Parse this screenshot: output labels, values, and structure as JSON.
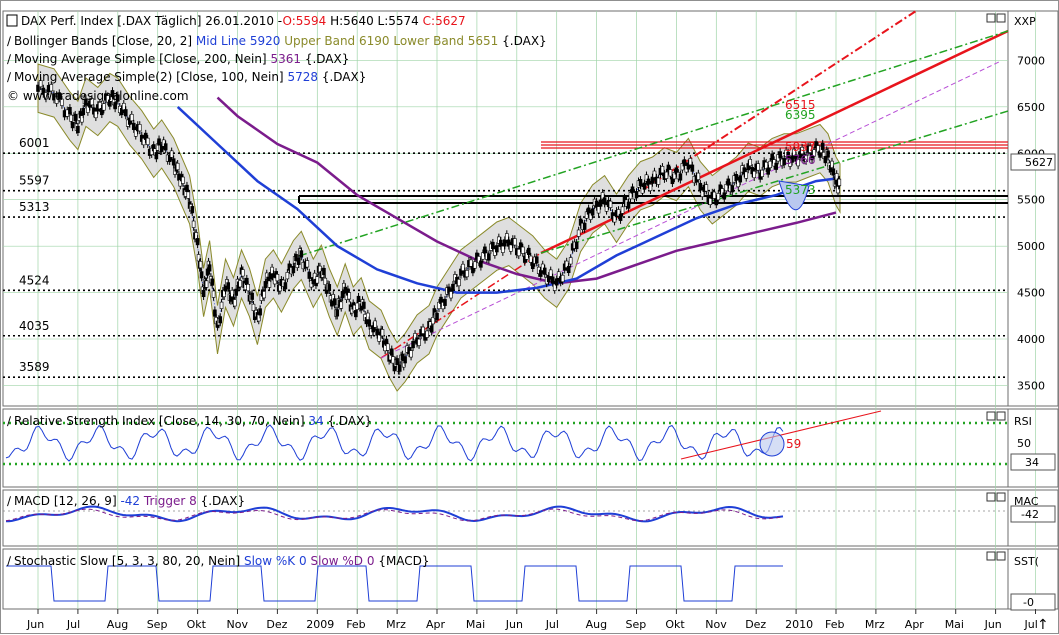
{
  "colors": {
    "grid": "#9fd4a8",
    "red": "#e8141c",
    "blue": "#1f3fd6",
    "purple": "#7b1c8c",
    "olive": "#8a8a2a",
    "green": "#22a322",
    "band_fill": "#d9d9d9"
  },
  "price_panel": {
    "title": "DAX Perf. Index [.DAX  Täglich] 26.01.2010 -",
    "o": "O:5594",
    "h": "H:5640",
    "l": "L:5574",
    "c": "C:5627",
    "bollinger": {
      "label": "Bollinger Bands [Close, 20, 2]",
      "mid": "Mid Line 5920",
      "upper": "Upper Band 6190",
      "lower": "Lower Band 5651",
      "sym": "{.DAX}"
    },
    "sma200": {
      "label": "Moving Average Simple [Close, 200, Nein]",
      "value": "5361",
      "sym": "{.DAX}"
    },
    "sma100": {
      "label": "Moving Average Simple(2) [Close, 100, Nein]",
      "value": "5728",
      "sym": "{.DAX}"
    },
    "watermark": "© www.tradesignalonline.com",
    "axis_label": "XXP",
    "last_value": "5627"
  },
  "rsi_panel": {
    "title": "Relative Strength Index [Close, 14, 30, 70, Nein]",
    "value": "34",
    "sym": "{.DAX}",
    "axis_label": "RSI",
    "tick": "50",
    "annotation": "59",
    "last_value": "34"
  },
  "macd_panel": {
    "title": "MACD [12, 26, 9]",
    "value": "-42",
    "trigger": "Trigger 8",
    "sym": "{.DAX}",
    "axis_label": "MAC",
    "last_value": "-42"
  },
  "stoch_panel": {
    "title": "Stochastic Slow [5, 3, 3, 80, 20, Nein]",
    "k": "Slow %K 0",
    "d": "Slow %D 0",
    "sym": "{MACD}",
    "axis_label": "SST(",
    "last_value": "-0"
  },
  "chart_data": {
    "type": "line",
    "title": "DAX Perf. Index [.DAX  Täglich] 26.01.2010",
    "x_labels": [
      "Jun",
      "Jul",
      "Aug",
      "Sep",
      "Okt",
      "Nov",
      "Dez",
      "2009",
      "Feb",
      "Mrz",
      "Apr",
      "Mai",
      "Jun",
      "Jul",
      "Aug",
      "Sep",
      "Okt",
      "Nov",
      "Dez",
      "2010",
      "Feb",
      "Mrz",
      "Apr",
      "Mai",
      "Jun",
      "Jul"
    ],
    "ylim": [
      3300,
      7500
    ],
    "y_ticks": [
      3500,
      4000,
      4500,
      5000,
      5500,
      6000,
      6500,
      7000
    ],
    "level_lines": [
      6001,
      5597,
      5313,
      4524,
      4035,
      3589
    ],
    "price_annotations": [
      "6515",
      "6395",
      "5937",
      "5766",
      "5373"
    ],
    "grid": true,
    "series": [
      {
        "name": "Close",
        "points": [
          [
            0,
            6700
          ],
          [
            0.4,
            6650
          ],
          [
            0.8,
            6400
          ],
          [
            1,
            6300
          ],
          [
            1.2,
            6550
          ],
          [
            1.5,
            6450
          ],
          [
            1.8,
            6600
          ],
          [
            2,
            6550
          ],
          [
            2.3,
            6350
          ],
          [
            2.6,
            6200
          ],
          [
            2.9,
            6000
          ],
          [
            3.1,
            6100
          ],
          [
            3.4,
            5900
          ],
          [
            3.6,
            5700
          ],
          [
            3.8,
            5500
          ],
          [
            4,
            5000
          ],
          [
            4.15,
            4500
          ],
          [
            4.3,
            4800
          ],
          [
            4.5,
            4100
          ],
          [
            4.7,
            4600
          ],
          [
            4.9,
            4400
          ],
          [
            5.1,
            4700
          ],
          [
            5.3,
            4500
          ],
          [
            5.5,
            4200
          ],
          [
            5.7,
            4600
          ],
          [
            5.9,
            4700
          ],
          [
            6.1,
            4550
          ],
          [
            6.4,
            4800
          ],
          [
            6.6,
            4900
          ],
          [
            6.9,
            4600
          ],
          [
            7.1,
            4750
          ],
          [
            7.3,
            4500
          ],
          [
            7.5,
            4300
          ],
          [
            7.7,
            4550
          ],
          [
            7.9,
            4300
          ],
          [
            8.1,
            4400
          ],
          [
            8.3,
            4150
          ],
          [
            8.6,
            4050
          ],
          [
            8.8,
            3850
          ],
          [
            9,
            3700
          ],
          [
            9.2,
            3800
          ],
          [
            9.5,
            4000
          ],
          [
            9.8,
            4100
          ],
          [
            10,
            4300
          ],
          [
            10.3,
            4500
          ],
          [
            10.6,
            4700
          ],
          [
            10.9,
            4800
          ],
          [
            11.2,
            4900
          ],
          [
            11.5,
            5000
          ],
          [
            11.8,
            5050
          ],
          [
            12.1,
            4950
          ],
          [
            12.4,
            4850
          ],
          [
            12.7,
            4700
          ],
          [
            13,
            4600
          ],
          [
            13.3,
            4800
          ],
          [
            13.6,
            5200
          ],
          [
            13.9,
            5400
          ],
          [
            14.2,
            5500
          ],
          [
            14.5,
            5300
          ],
          [
            14.8,
            5500
          ],
          [
            15.1,
            5650
          ],
          [
            15.4,
            5700
          ],
          [
            15.7,
            5800
          ],
          [
            16,
            5750
          ],
          [
            16.3,
            5900
          ],
          [
            16.6,
            5650
          ],
          [
            16.9,
            5500
          ],
          [
            17.2,
            5600
          ],
          [
            17.5,
            5700
          ],
          [
            17.8,
            5850
          ],
          [
            18.1,
            5800
          ],
          [
            18.4,
            5900
          ],
          [
            18.7,
            5950
          ],
          [
            19,
            5950
          ],
          [
            19.3,
            6000
          ],
          [
            19.6,
            6050
          ],
          [
            19.8,
            5950
          ],
          [
            20,
            5700
          ],
          [
            20.1,
            5627
          ]
        ]
      },
      {
        "name": "SMA 200",
        "points": [
          [
            4.5,
            6600
          ],
          [
            5,
            6400
          ],
          [
            6,
            6100
          ],
          [
            7,
            5900
          ],
          [
            8,
            5550
          ],
          [
            9,
            5300
          ],
          [
            10,
            5050
          ],
          [
            11,
            4850
          ],
          [
            12,
            4700
          ],
          [
            13,
            4600
          ],
          [
            14,
            4650
          ],
          [
            15,
            4800
          ],
          [
            16,
            4950
          ],
          [
            17,
            5050
          ],
          [
            18,
            5150
          ],
          [
            19,
            5250
          ],
          [
            20,
            5361
          ]
        ]
      },
      {
        "name": "SMA 100",
        "points": [
          [
            3.5,
            6500
          ],
          [
            4.5,
            6100
          ],
          [
            5.5,
            5700
          ],
          [
            6.5,
            5400
          ],
          [
            7.5,
            5000
          ],
          [
            8.5,
            4750
          ],
          [
            9.5,
            4600
          ],
          [
            10.5,
            4500
          ],
          [
            11.5,
            4500
          ],
          [
            12.5,
            4550
          ],
          [
            13.5,
            4650
          ],
          [
            14.5,
            4900
          ],
          [
            15.5,
            5100
          ],
          [
            16.5,
            5300
          ],
          [
            17.5,
            5450
          ],
          [
            18.5,
            5550
          ],
          [
            19.5,
            5700
          ],
          [
            20,
            5728
          ]
        ]
      }
    ]
  }
}
